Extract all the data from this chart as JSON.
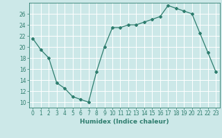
{
  "x": [
    0,
    1,
    2,
    3,
    4,
    5,
    6,
    7,
    8,
    9,
    10,
    11,
    12,
    13,
    14,
    15,
    16,
    17,
    18,
    19,
    20,
    21,
    22,
    23
  ],
  "y": [
    21.5,
    19.5,
    18.0,
    13.5,
    12.5,
    11.0,
    10.5,
    10.0,
    15.5,
    20.0,
    23.5,
    23.5,
    24.0,
    24.0,
    24.5,
    25.0,
    25.5,
    27.5,
    27.0,
    26.5,
    26.0,
    22.5,
    19.0,
    15.5
  ],
  "line_color": "#2e7d6e",
  "marker": "D",
  "marker_size": 2,
  "bg_color": "#cce8e8",
  "grid_color": "#ffffff",
  "xlabel": "Humidex (Indice chaleur)",
  "ylim": [
    9,
    28
  ],
  "xlim": [
    -0.5,
    23.5
  ],
  "yticks": [
    10,
    12,
    14,
    16,
    18,
    20,
    22,
    24,
    26
  ],
  "xticks": [
    0,
    1,
    2,
    3,
    4,
    5,
    6,
    7,
    8,
    9,
    10,
    11,
    12,
    13,
    14,
    15,
    16,
    17,
    18,
    19,
    20,
    21,
    22,
    23
  ],
  "tick_color": "#2e7d6e",
  "label_fontsize": 6.5,
  "tick_fontsize": 5.5
}
